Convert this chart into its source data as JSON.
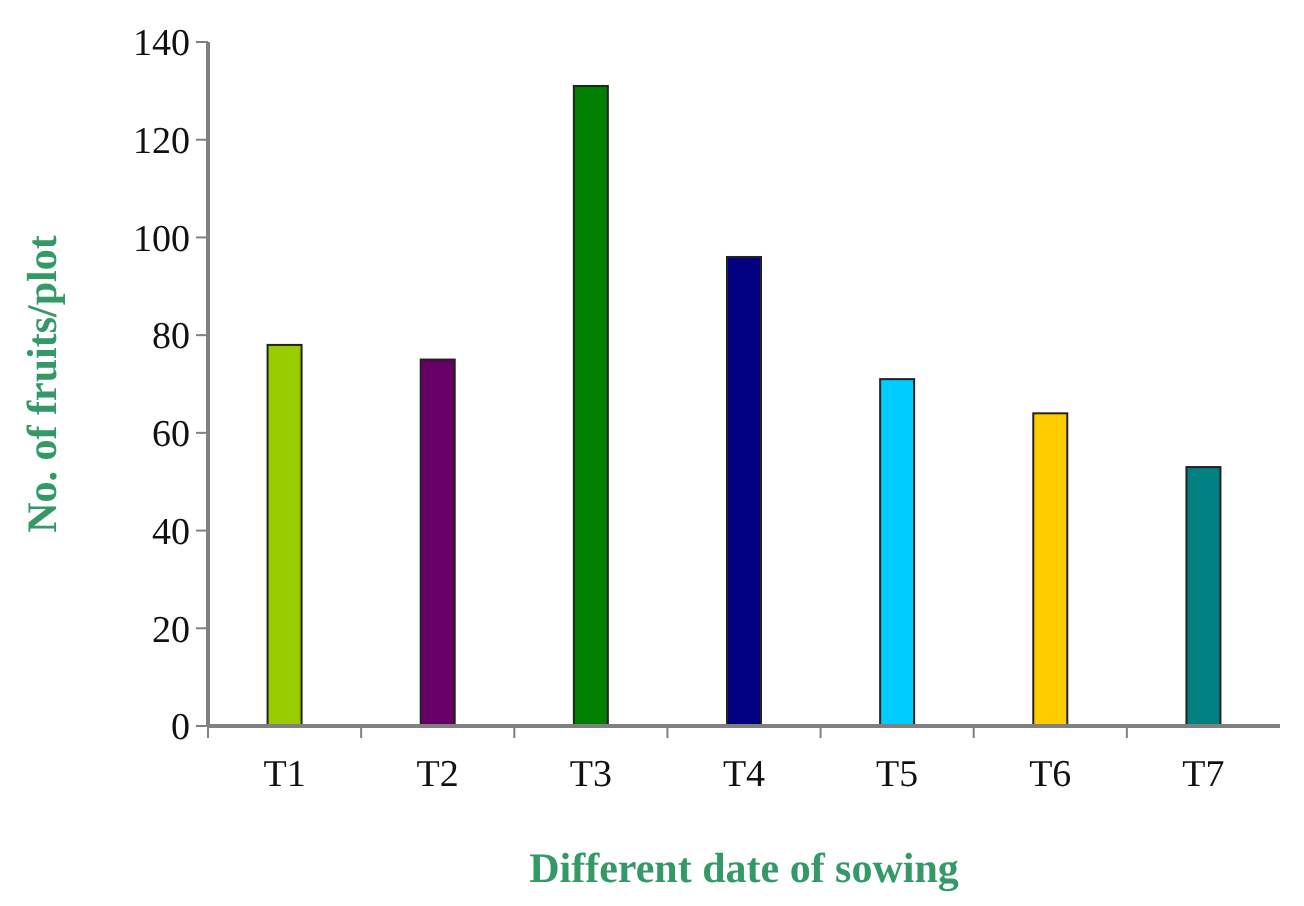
{
  "chart_data": {
    "type": "bar",
    "xlabel": "Different date of sowing",
    "ylabel": "No. of fruits/plot",
    "categories": [
      "T1",
      "T2",
      "T3",
      "T4",
      "T5",
      "T6",
      "T7"
    ],
    "values": [
      78,
      75,
      131,
      96,
      71,
      64,
      53
    ],
    "colors": [
      "#99cc00",
      "#660066",
      "#008000",
      "#000080",
      "#00ccff",
      "#ffcc00",
      "#008080"
    ],
    "ylim": [
      0,
      140
    ],
    "yticks": [
      0,
      20,
      40,
      60,
      80,
      100,
      120,
      140
    ],
    "grid": false
  }
}
